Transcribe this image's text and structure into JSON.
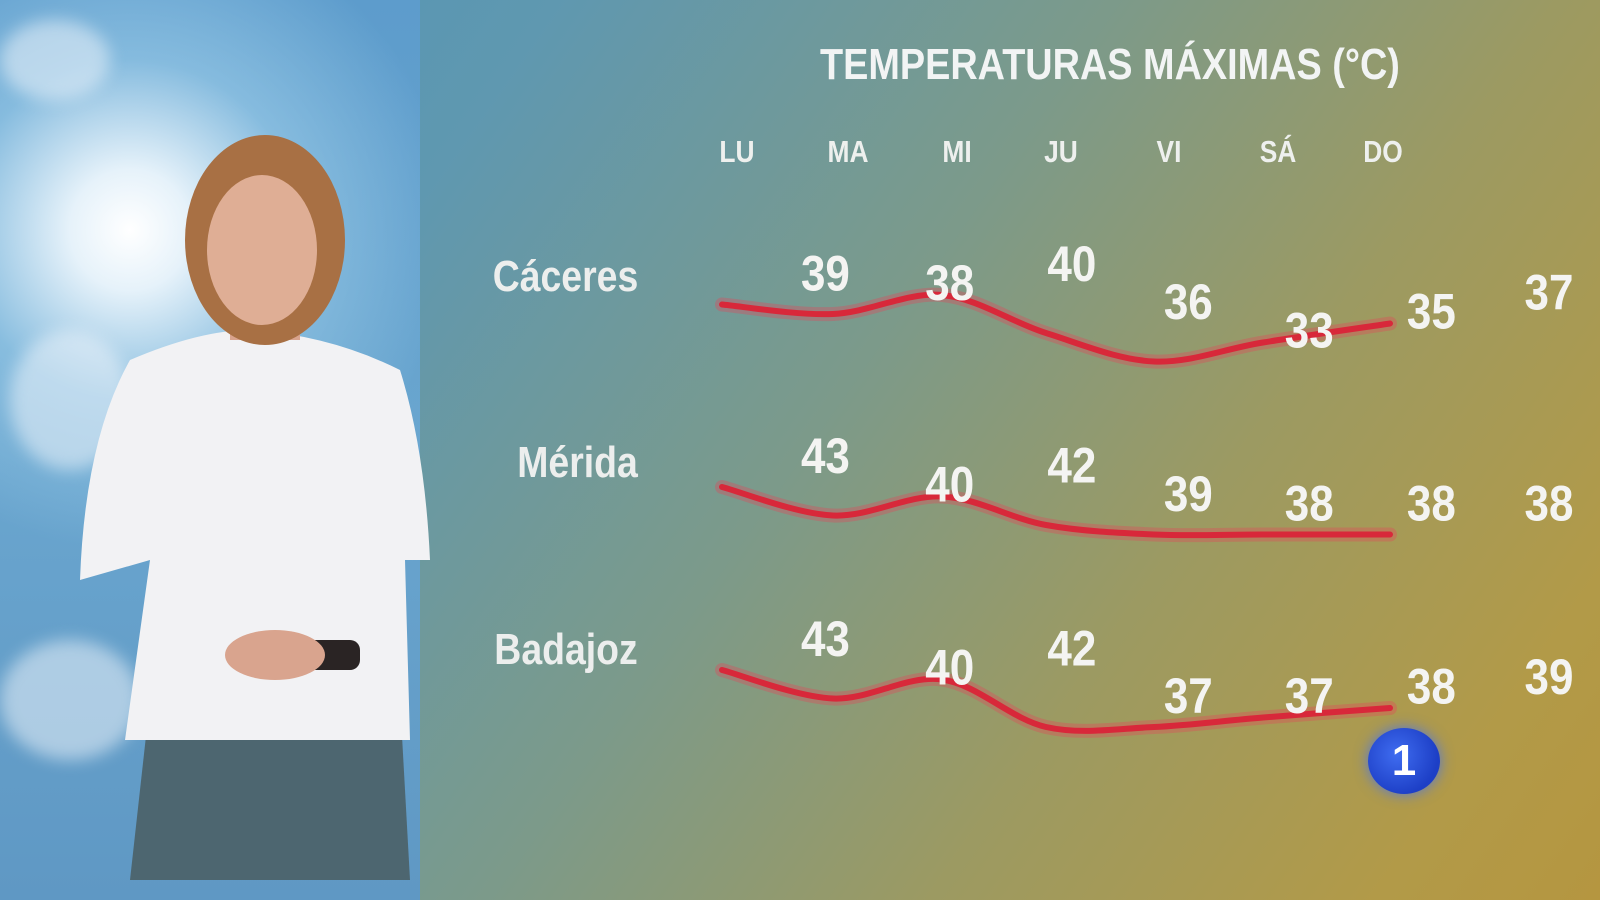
{
  "chart_data": {
    "type": "line",
    "title": "TEMPERATURAS MÁXIMAS (°C)",
    "categories": [
      "LU",
      "MA",
      "MI",
      "JU",
      "VI",
      "SÁ",
      "DO"
    ],
    "series": [
      {
        "name": "Cáceres",
        "values": [
          39,
          38,
          40,
          36,
          33,
          35,
          37
        ]
      },
      {
        "name": "Mérida",
        "values": [
          43,
          40,
          42,
          39,
          38,
          38,
          38
        ]
      },
      {
        "name": "Badajoz",
        "values": [
          43,
          40,
          42,
          37,
          37,
          38,
          39
        ]
      }
    ],
    "line_color": "#d8283a",
    "grid": false,
    "legend": "left"
  },
  "logo": {
    "text": "1",
    "color": "#2448d8"
  }
}
